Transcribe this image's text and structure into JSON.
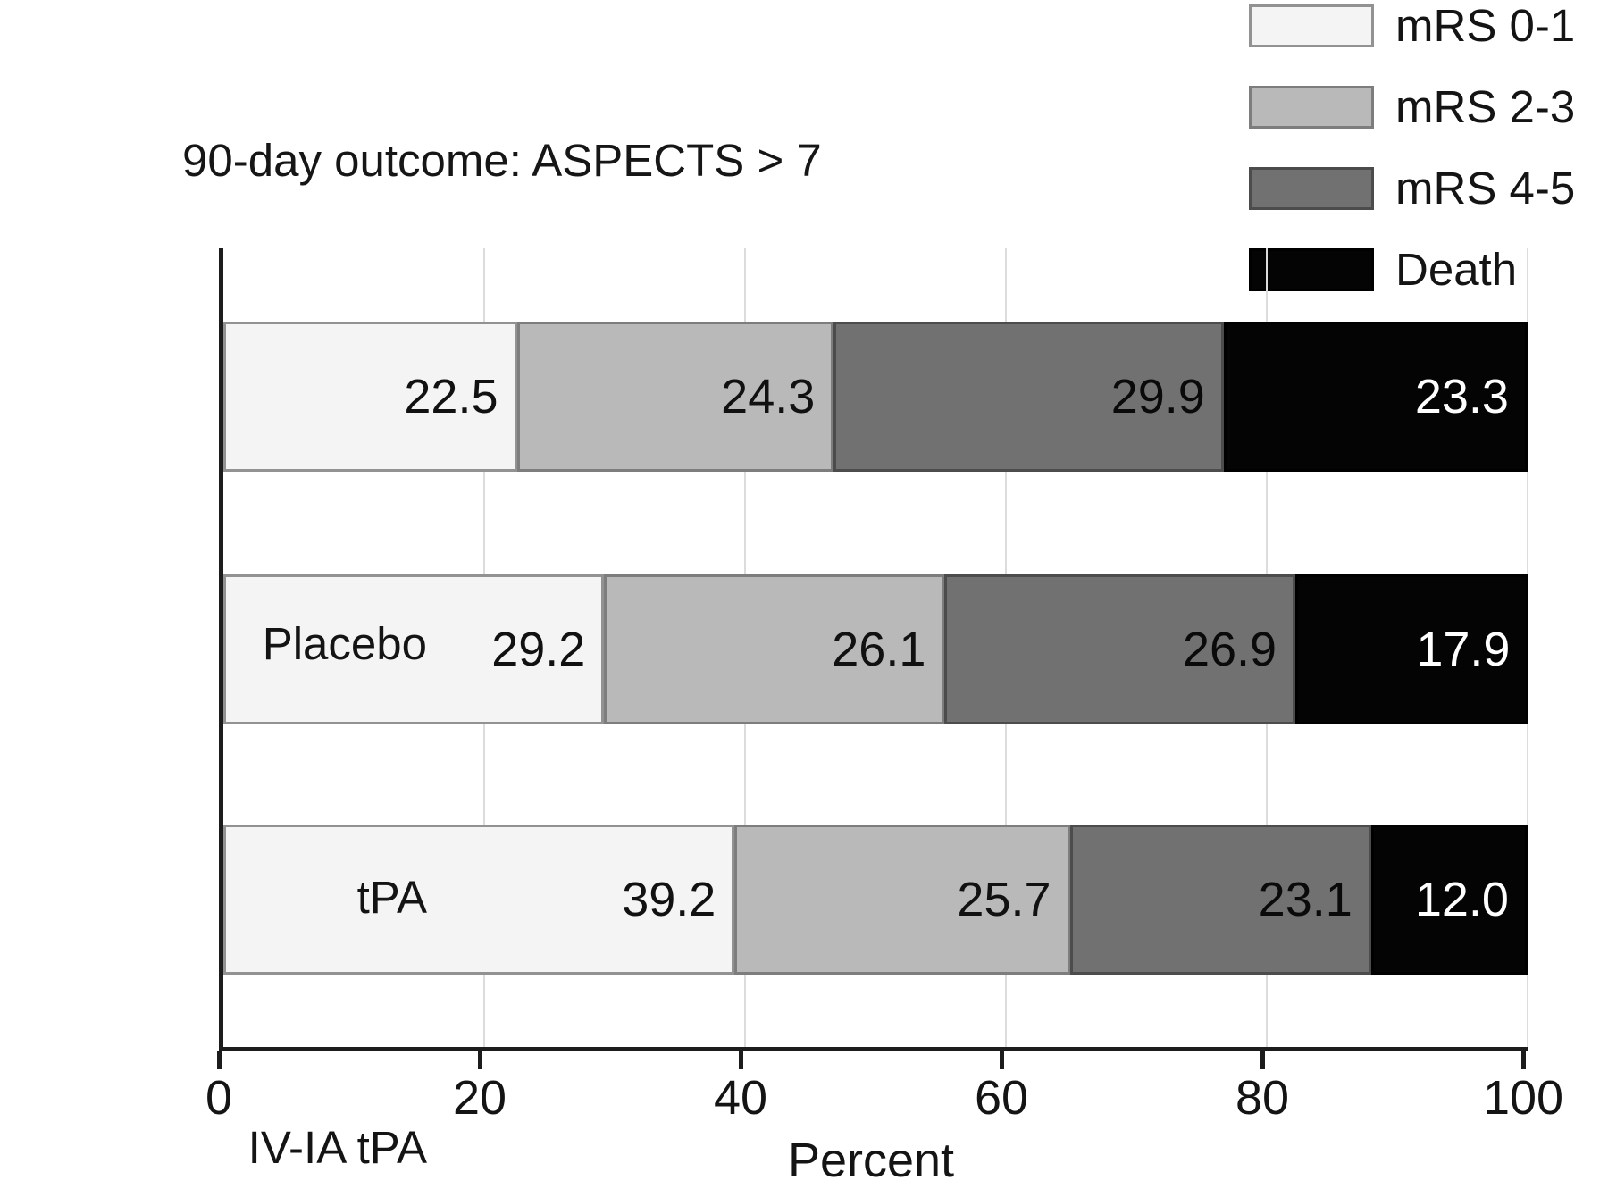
{
  "chart_data": {
    "type": "bar",
    "orientation": "horizontal",
    "stacked": true,
    "title": "90-day outcome: ASPECTS > 7",
    "categories": [
      "Placebo",
      "tPA",
      "IV-IA tPA"
    ],
    "series": [
      {
        "name": "mRS 0-1",
        "color": "#f4f4f4",
        "border_color": "#929292",
        "text_color": "#111111",
        "values": [
          22.5,
          29.2,
          39.2
        ],
        "labels": [
          "22.5",
          "29.2",
          "39.2"
        ]
      },
      {
        "name": "mRS 2-3",
        "color": "#b9b9b9",
        "border_color": "#7d7d7d",
        "text_color": "#111111",
        "values": [
          24.3,
          26.1,
          25.7
        ],
        "labels": [
          "24.3",
          "26.1",
          "25.7"
        ]
      },
      {
        "name": "mRS 4-5",
        "color": "#717171",
        "border_color": "#4c4c4c",
        "text_color": "#0a0a0a",
        "values": [
          29.9,
          26.9,
          23.1
        ],
        "labels": [
          "29.9",
          "26.9",
          "23.1"
        ]
      },
      {
        "name": "Death",
        "color": "#040404",
        "border_color": "#000000",
        "text_color": "#ffffff",
        "values": [
          23.3,
          17.9,
          12.0
        ],
        "labels": [
          "23.3",
          "17.9",
          "12.0"
        ]
      }
    ],
    "xlabel": "Percent",
    "x_ticks": [
      "0",
      "20",
      "40",
      "60",
      "80",
      "100"
    ],
    "xlim": [
      0,
      100
    ],
    "grid": "vertical-gridlines",
    "legend_position": "top-right"
  }
}
